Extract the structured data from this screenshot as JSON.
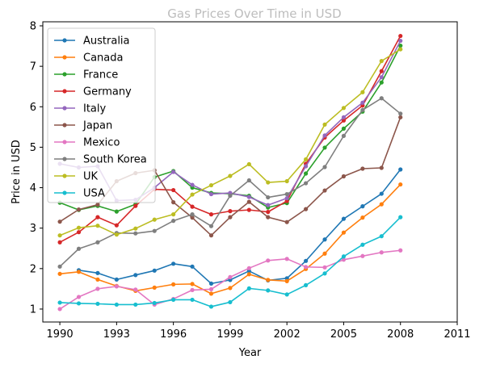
{
  "chart_data": {
    "type": "line",
    "title": "Gas Prices Over Time in USD",
    "xlabel": "Year",
    "ylabel": "Price in USD",
    "xlim": [
      1989.1,
      2011
    ],
    "ylim": [
      0.68,
      8.1
    ],
    "xticks": [
      1990,
      1993,
      1996,
      1999,
      2002,
      2005,
      2008,
      2011
    ],
    "yticks": [
      1,
      2,
      3,
      4,
      5,
      6,
      7,
      8
    ],
    "grid": false,
    "legend": "top-left",
    "x": [
      1990,
      1991,
      1992,
      1993,
      1994,
      1995,
      1996,
      1997,
      1998,
      1999,
      2000,
      2001,
      2002,
      2003,
      2004,
      2005,
      2006,
      2007,
      2008
    ],
    "series": [
      {
        "name": "Australia",
        "color": "#1f77b4",
        "values": [
          null,
          1.96,
          1.89,
          1.73,
          1.84,
          1.95,
          2.12,
          2.05,
          1.63,
          1.72,
          1.94,
          1.71,
          1.76,
          2.19,
          2.72,
          3.23,
          3.54,
          3.85,
          4.45
        ]
      },
      {
        "name": "Canada",
        "color": "#ff7f0e",
        "values": [
          1.87,
          1.92,
          1.73,
          1.57,
          1.45,
          1.53,
          1.61,
          1.62,
          1.38,
          1.52,
          1.86,
          1.72,
          1.69,
          1.99,
          2.37,
          2.89,
          3.26,
          3.59,
          4.08
        ]
      },
      {
        "name": "France",
        "color": "#2ca02c",
        "values": [
          3.63,
          3.45,
          3.55,
          3.41,
          3.59,
          4.26,
          4.41,
          4.0,
          3.87,
          3.85,
          3.8,
          3.51,
          3.62,
          4.35,
          4.99,
          5.46,
          5.88,
          6.6,
          7.51
        ]
      },
      {
        "name": "Germany",
        "color": "#d62728",
        "values": [
          2.65,
          2.9,
          3.27,
          3.07,
          3.55,
          3.96,
          3.94,
          3.53,
          3.34,
          3.42,
          3.45,
          3.4,
          3.67,
          4.59,
          5.24,
          5.66,
          6.03,
          6.88,
          7.75
        ]
      },
      {
        "name": "Italy",
        "color": "#9467bd",
        "values": [
          4.59,
          4.5,
          4.53,
          3.68,
          3.7,
          4.0,
          4.39,
          4.07,
          3.84,
          3.87,
          3.77,
          3.57,
          3.74,
          4.53,
          5.29,
          5.74,
          6.1,
          6.73,
          7.63
        ]
      },
      {
        "name": "Japan",
        "color": "#8c564b",
        "values": [
          3.16,
          3.46,
          3.58,
          4.16,
          4.36,
          4.43,
          3.64,
          3.26,
          2.82,
          3.27,
          3.65,
          3.27,
          3.15,
          3.47,
          3.93,
          4.28,
          4.47,
          4.49,
          5.74
        ]
      },
      {
        "name": "Mexico",
        "color": "#e377c2",
        "values": [
          1.0,
          1.3,
          1.5,
          1.56,
          1.48,
          1.11,
          1.25,
          1.47,
          1.49,
          1.79,
          2.01,
          2.2,
          2.24,
          2.04,
          2.03,
          2.22,
          2.31,
          2.4,
          2.45
        ]
      },
      {
        "name": "South Korea",
        "color": "#7f7f7f",
        "values": [
          2.05,
          2.49,
          2.65,
          2.88,
          2.87,
          2.93,
          3.18,
          3.34,
          3.05,
          3.8,
          4.18,
          3.76,
          3.84,
          4.11,
          4.51,
          5.28,
          5.92,
          6.21,
          5.83
        ]
      },
      {
        "name": "UK",
        "color": "#bcbd22",
        "values": [
          2.82,
          3.01,
          3.06,
          2.84,
          2.99,
          3.21,
          3.34,
          3.83,
          4.06,
          4.29,
          4.58,
          4.13,
          4.16,
          4.7,
          5.56,
          5.97,
          6.36,
          7.13,
          7.42
        ]
      },
      {
        "name": "USA",
        "color": "#17becf",
        "values": [
          1.16,
          1.14,
          1.13,
          1.11,
          1.11,
          1.15,
          1.23,
          1.23,
          1.06,
          1.17,
          1.51,
          1.46,
          1.36,
          1.59,
          1.88,
          2.3,
          2.59,
          2.8,
          3.27
        ]
      }
    ]
  }
}
